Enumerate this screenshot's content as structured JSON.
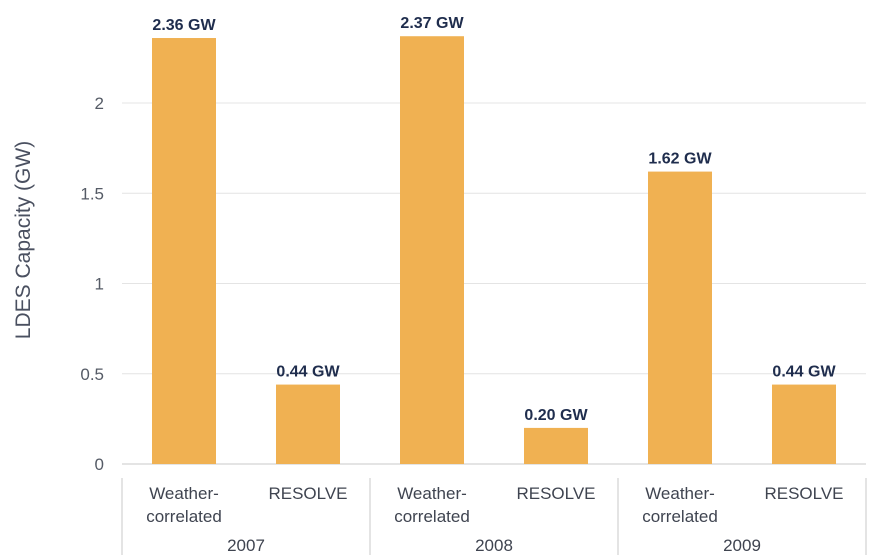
{
  "chart_data": {
    "type": "bar",
    "ylabel": "LDES Capacity (GW)",
    "ylim": [
      0,
      2.5
    ],
    "yticks": [
      "0",
      "0.5",
      "1",
      "1.5",
      "2"
    ],
    "grid": true,
    "bar_color": "#F0B152",
    "groups": [
      {
        "name": "2007",
        "categories": [
          {
            "label_lines": [
              "Weather-",
              "correlated"
            ],
            "value": 2.36,
            "data_label": "2.36 GW"
          },
          {
            "label_lines": [
              "RESOLVE"
            ],
            "value": 0.44,
            "data_label": "0.44 GW"
          }
        ]
      },
      {
        "name": "2008",
        "categories": [
          {
            "label_lines": [
              "Weather-",
              "correlated"
            ],
            "value": 2.37,
            "data_label": "2.37 GW"
          },
          {
            "label_lines": [
              "RESOLVE"
            ],
            "value": 0.2,
            "data_label": "0.20 GW"
          }
        ]
      },
      {
        "name": "2009",
        "categories": [
          {
            "label_lines": [
              "Weather-",
              "correlated"
            ],
            "value": 1.62,
            "data_label": "1.62 GW"
          },
          {
            "label_lines": [
              "RESOLVE"
            ],
            "value": 0.44,
            "data_label": "0.44 GW"
          }
        ]
      }
    ]
  }
}
